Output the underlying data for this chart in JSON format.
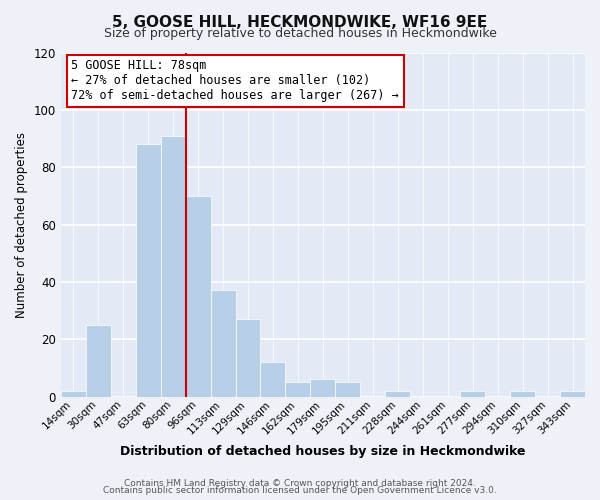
{
  "title": "5, GOOSE HILL, HECKMONDWIKE, WF16 9EE",
  "subtitle": "Size of property relative to detached houses in Heckmondwike",
  "xlabel": "Distribution of detached houses by size in Heckmondwike",
  "ylabel": "Number of detached properties",
  "bin_labels": [
    "14sqm",
    "30sqm",
    "47sqm",
    "63sqm",
    "80sqm",
    "96sqm",
    "113sqm",
    "129sqm",
    "146sqm",
    "162sqm",
    "179sqm",
    "195sqm",
    "211sqm",
    "228sqm",
    "244sqm",
    "261sqm",
    "277sqm",
    "294sqm",
    "310sqm",
    "327sqm",
    "343sqm"
  ],
  "bar_values": [
    2,
    25,
    0,
    88,
    91,
    70,
    37,
    27,
    12,
    5,
    6,
    5,
    0,
    2,
    0,
    0,
    2,
    0,
    2,
    0,
    2
  ],
  "bar_color": "#b8cfe8",
  "bar_edge_color": "#ffffff",
  "vline_x_index": 4,
  "vline_color": "#cc0000",
  "annotation_title": "5 GOOSE HILL: 78sqm",
  "annotation_line1": "← 27% of detached houses are smaller (102)",
  "annotation_line2": "72% of semi-detached houses are larger (267) →",
  "annotation_box_color": "#ffffff",
  "annotation_box_edge": "#cc0000",
  "ylim": [
    0,
    120
  ],
  "yticks": [
    0,
    20,
    40,
    60,
    80,
    100,
    120
  ],
  "footer1": "Contains HM Land Registry data © Crown copyright and database right 2024.",
  "footer2": "Contains public sector information licensed under the Open Government Licence v3.0.",
  "bg_color": "#eef2f8",
  "plot_bg_color": "#e4eaf5"
}
